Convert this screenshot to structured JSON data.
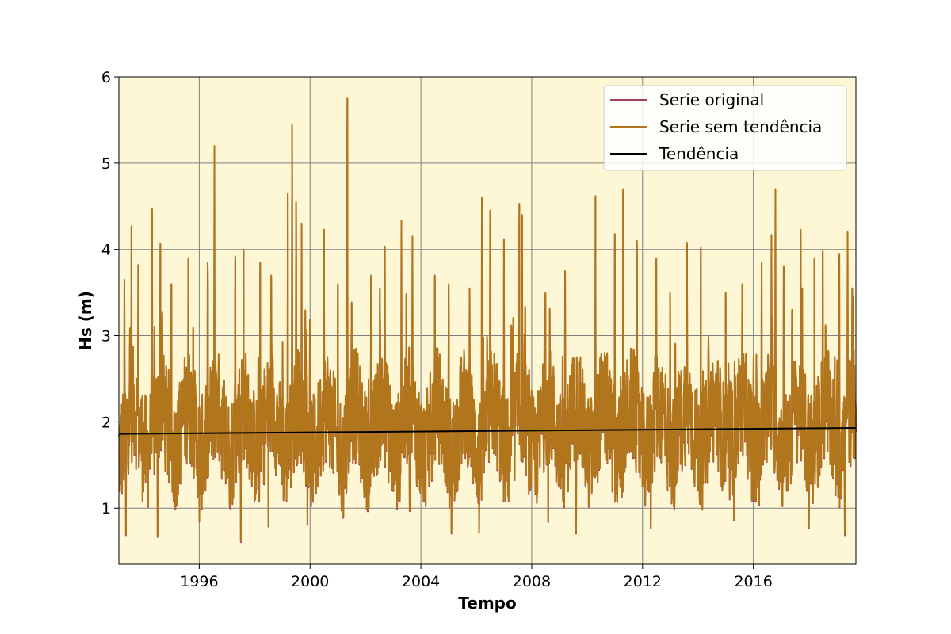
{
  "chart_data": {
    "type": "line",
    "title": "",
    "xlabel": "Tempo",
    "ylabel": "Hs (m)",
    "xlim": [
      1993.1,
      2019.7
    ],
    "ylim": [
      0.35,
      6.0
    ],
    "x_ticks": [
      1996,
      2000,
      2004,
      2008,
      2012,
      2016
    ],
    "y_ticks": [
      1,
      2,
      3,
      4,
      5,
      6
    ],
    "grid": true,
    "legend_position": "top-right",
    "plot_background": "#fdf7d5",
    "series": [
      {
        "name": "Serie original",
        "color": "#a0405a",
        "baseline": 1.86,
        "peaks": [
          [
            1993.3,
            3.65
          ],
          [
            1993.55,
            4.27
          ],
          [
            1993.8,
            3.82
          ],
          [
            1994.3,
            4.47
          ],
          [
            1994.6,
            4.07
          ],
          [
            1995.0,
            3.6
          ],
          [
            1995.6,
            3.9
          ],
          [
            1996.3,
            3.85
          ],
          [
            1996.55,
            5.2
          ],
          [
            1997.3,
            3.92
          ],
          [
            1997.6,
            4.0
          ],
          [
            1998.2,
            3.85
          ],
          [
            1998.6,
            3.7
          ],
          [
            1999.2,
            4.65
          ],
          [
            1999.35,
            5.45
          ],
          [
            1999.5,
            4.55
          ],
          [
            1999.7,
            4.3
          ],
          [
            2000.5,
            4.23
          ],
          [
            2001.0,
            3.6
          ],
          [
            2001.35,
            5.75
          ],
          [
            2002.2,
            3.7
          ],
          [
            2002.7,
            4.03
          ],
          [
            2003.3,
            4.33
          ],
          [
            2003.7,
            4.15
          ],
          [
            2004.5,
            3.7
          ],
          [
            2005.0,
            3.6
          ],
          [
            2006.2,
            4.6
          ],
          [
            2006.5,
            4.45
          ],
          [
            2007.0,
            4.12
          ],
          [
            2007.55,
            4.53
          ],
          [
            2007.65,
            4.4
          ],
          [
            2008.5,
            3.5
          ],
          [
            2009.2,
            3.75
          ],
          [
            2010.3,
            4.62
          ],
          [
            2011.0,
            4.18
          ],
          [
            2011.3,
            4.7
          ],
          [
            2011.8,
            4.1
          ],
          [
            2012.5,
            3.9
          ],
          [
            2013.0,
            3.5
          ],
          [
            2013.6,
            4.08
          ],
          [
            2014.1,
            4.02
          ],
          [
            2015.0,
            3.5
          ],
          [
            2015.6,
            3.6
          ],
          [
            2016.3,
            3.85
          ],
          [
            2016.65,
            4.17
          ],
          [
            2016.8,
            4.7
          ],
          [
            2017.1,
            3.8
          ],
          [
            2017.4,
            3.3
          ],
          [
            2017.7,
            4.23
          ],
          [
            2018.2,
            3.9
          ],
          [
            2018.5,
            3.98
          ],
          [
            2019.1,
            3.95
          ],
          [
            2019.4,
            4.2
          ],
          [
            2019.6,
            3.45
          ]
        ],
        "troughs": [
          [
            1993.35,
            0.7
          ],
          [
            1994.5,
            0.68
          ],
          [
            1996.0,
            0.86
          ],
          [
            1997.5,
            0.62
          ],
          [
            1998.5,
            0.8
          ],
          [
            1999.9,
            0.82
          ],
          [
            2001.2,
            0.9
          ],
          [
            2003.6,
            0.98
          ],
          [
            2005.1,
            0.72
          ],
          [
            2006.1,
            0.73
          ],
          [
            2008.6,
            0.85
          ],
          [
            2009.6,
            0.72
          ],
          [
            2012.3,
            0.78
          ],
          [
            2015.3,
            0.87
          ],
          [
            2018.0,
            0.78
          ],
          [
            2019.3,
            0.7
          ]
        ]
      },
      {
        "name": "Serie sem tendência",
        "color": "#b1761b",
        "baseline": 1.86
      },
      {
        "name": "Tendência",
        "color": "#000000",
        "x": [
          1993.1,
          2019.7
        ],
        "y": [
          1.86,
          1.93
        ]
      }
    ]
  }
}
